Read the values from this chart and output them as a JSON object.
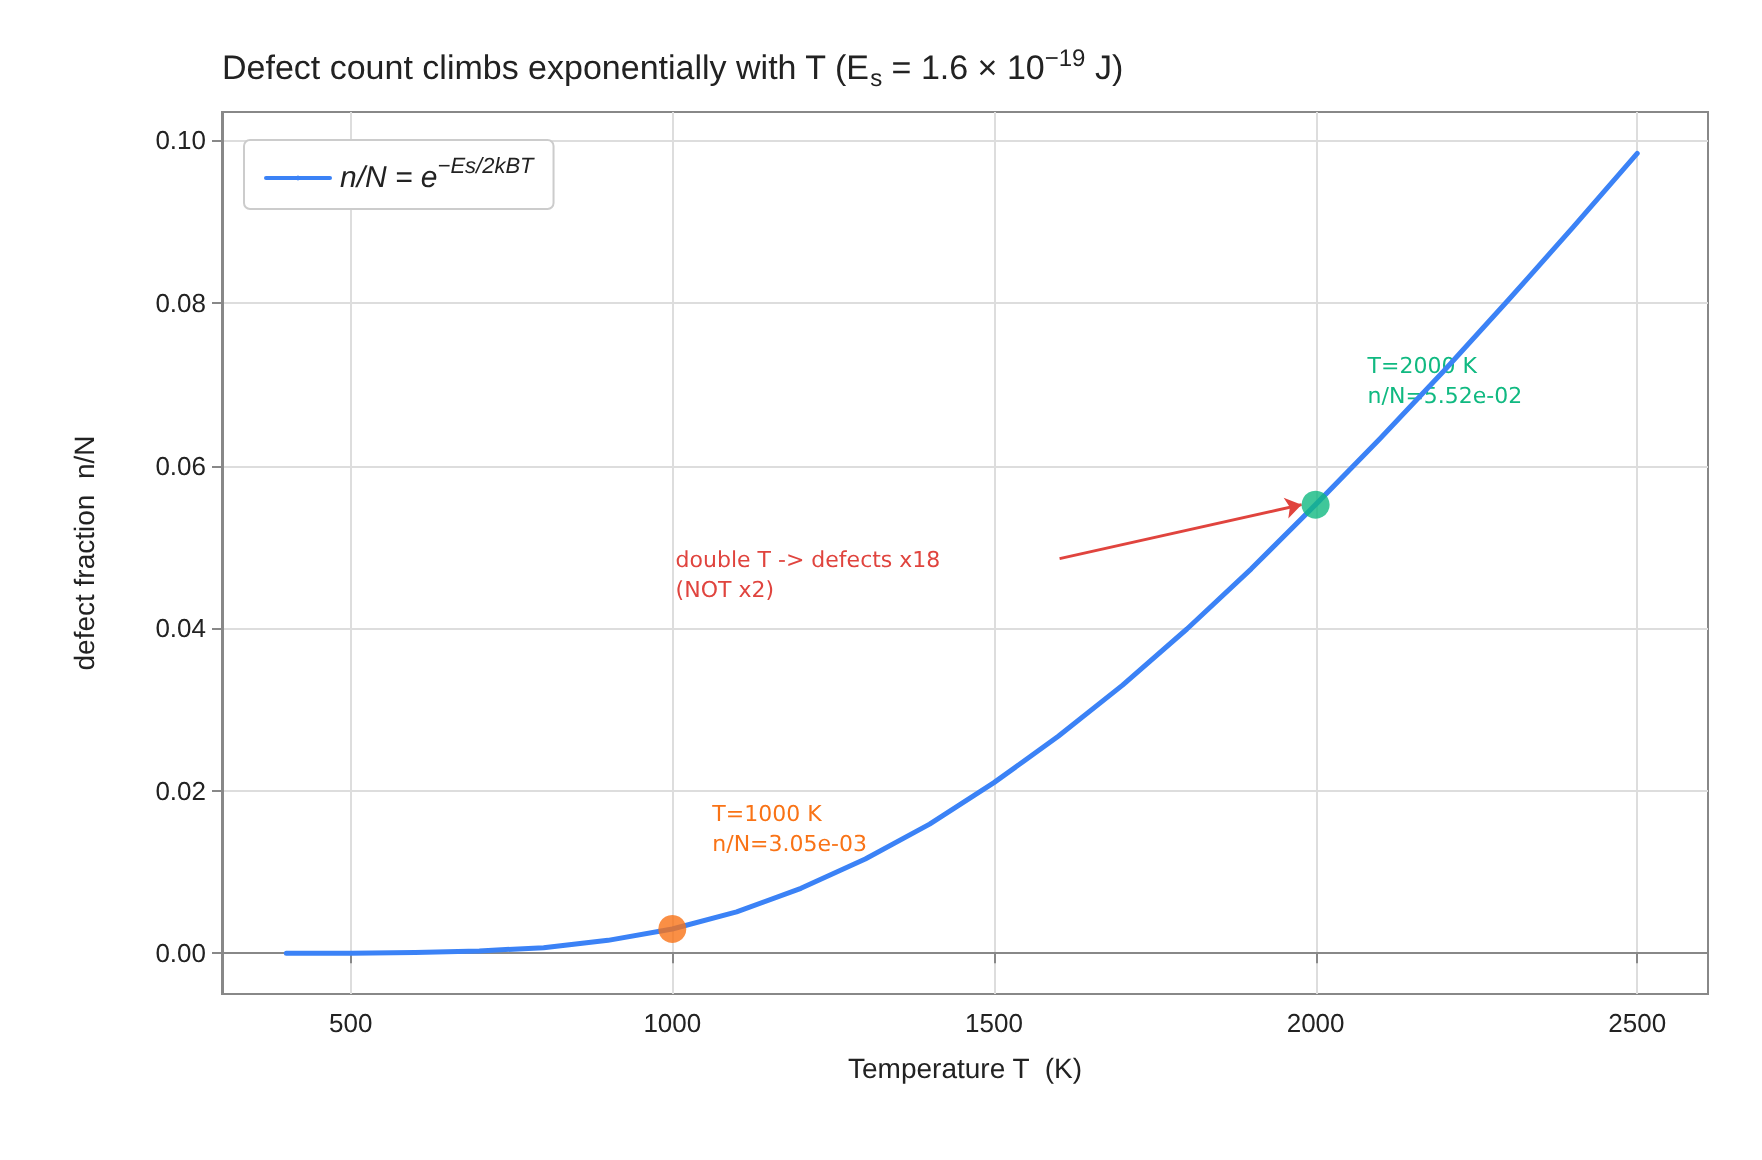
{
  "chart_data": {
    "type": "line",
    "title": "Defect count climbs exponentially with T (E$_{s}$ = 1.6 × 10$^{−19}$ J)",
    "xlabel": "Temperature T  (K)",
    "ylabel": "defect fraction  n/N",
    "series": [
      {
        "name": "n/N = e$^{−Es/2kBT}$",
        "color": "#3b82f6",
        "x": [
          400,
          500,
          600,
          700,
          800,
          900,
          1000,
          1100,
          1200,
          1300,
          1400,
          1500,
          1600,
          1700,
          1800,
          1900,
          2000,
          2100,
          2200,
          2300,
          2400,
          2500
        ],
        "values": [
          0,
          0,
          0.0001,
          0.0003,
          0.0007,
          0.0016,
          0.003,
          0.0051,
          0.008,
          0.0116,
          0.0159,
          0.021,
          0.0267,
          0.033,
          0.0399,
          0.0473,
          0.0552,
          0.0633,
          0.0717,
          0.0804,
          0.0893,
          0.0984
        ]
      },
      {
        "type": "scatter",
        "color": "#f97316",
        "x": [
          1000
        ],
        "values": [
          0.003
        ]
      },
      {
        "type": "scatter",
        "color": "#10b981",
        "x": [
          2000
        ],
        "values": [
          0.0552
        ]
      }
    ],
    "annotations": [
      "T=1000 K\nn/N=3.05e-03",
      "T=2000 K\nn/N=5.52e-02",
      "double T -> defects x18\n(NOT x2)"
    ],
    "xlim": [
      300,
      2610
    ],
    "xticks": [
      500,
      1000,
      1500,
      2000,
      2500
    ],
    "ylim": [
      -0.005,
      0.1035
    ],
    "yticks": [
      {
        "value": 0,
        "label": "0.00"
      },
      {
        "value": 0.02,
        "label": "0.02"
      },
      {
        "value": 0.04,
        "label": "0.04"
      },
      {
        "value": 0.06,
        "label": "0.06"
      },
      {
        "value": 0.08,
        "label": "0.08"
      },
      {
        "value": 0.1,
        "label": "0.10"
      }
    ],
    "grid": true,
    "legend": "top left",
    "line_style": "solid"
  }
}
